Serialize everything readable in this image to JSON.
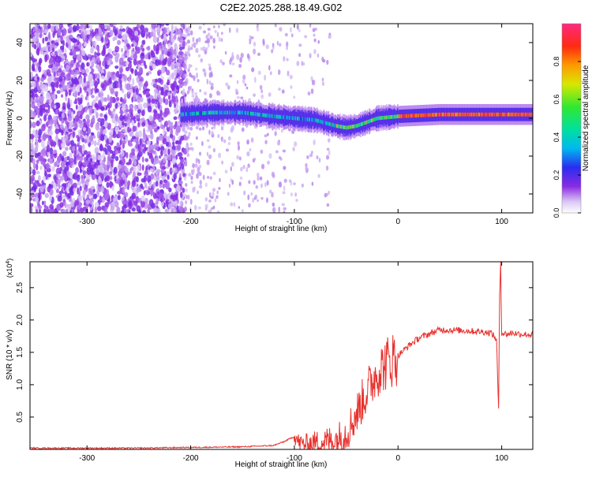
{
  "figure_title": "C2E2.2025.288.18.49.G02",
  "chart_data": [
    {
      "type": "heatmap",
      "title": "C2E2.2025.288.18.49.G02",
      "xlabel": "Height of straight line (km)",
      "ylabel": "Frequency (Hz)",
      "xlim": [
        -355,
        130
      ],
      "ylim": [
        -50,
        50
      ],
      "x_ticks": [
        -300,
        -200,
        -100,
        0,
        100
      ],
      "y_ticks": [
        -40,
        -20,
        0,
        20,
        40
      ],
      "colorbar": {
        "label": "Normalized spectral amplitude",
        "range": [
          0.0,
          1.0
        ],
        "ticks": [
          0.0,
          0.2,
          0.4,
          0.6,
          0.8
        ],
        "tick_labels": [
          "0.0",
          "0.2",
          "0.4",
          "0.6",
          "0.8"
        ]
      },
      "signal_trace": [
        {
          "x": -210,
          "y": 2
        },
        {
          "x": -180,
          "y": 3
        },
        {
          "x": -150,
          "y": 3
        },
        {
          "x": -120,
          "y": 1
        },
        {
          "x": -100,
          "y": 0
        },
        {
          "x": -80,
          "y": -1
        },
        {
          "x": -60,
          "y": -4
        },
        {
          "x": -50,
          "y": -5
        },
        {
          "x": -40,
          "y": -4
        },
        {
          "x": -30,
          "y": -2
        },
        {
          "x": -20,
          "y": 0
        },
        {
          "x": 0,
          "y": 1
        },
        {
          "x": 40,
          "y": 2
        },
        {
          "x": 80,
          "y": 2
        },
        {
          "x": 100,
          "y": 2
        },
        {
          "x": 130,
          "y": 2
        }
      ]
    },
    {
      "type": "line",
      "xlabel": "Height of straight line (km)",
      "ylabel": "SNR (10 * v/v)",
      "y_multiplier": "(x10",
      "y_multiplier_exp": "4",
      "y_multiplier_close": ")",
      "xlim": [
        -355,
        130
      ],
      "ylim": [
        0,
        2.9
      ],
      "x_ticks": [
        -300,
        -200,
        -100,
        0,
        100
      ],
      "y_ticks": [
        0.5,
        1.0,
        1.5,
        2.0,
        2.5
      ],
      "y_tick_labels": [
        "0.5",
        "1.0",
        "1.5",
        "2.0",
        "2.5"
      ],
      "series": [
        {
          "name": "SNR",
          "color": "#e8322e",
          "x": [
            -355,
            -300,
            -250,
            -200,
            -150,
            -120,
            -110,
            -100,
            -95,
            -90,
            -80,
            -70,
            -60,
            -50,
            -40,
            -30,
            -20,
            -10,
            0,
            10,
            20,
            40,
            60,
            80,
            90,
            95,
            97,
            98,
            99,
            100,
            105,
            110,
            120,
            130
          ],
          "y": [
            0.02,
            0.02,
            0.02,
            0.03,
            0.04,
            0.06,
            0.12,
            0.2,
            0.1,
            0.08,
            0.1,
            0.12,
            0.15,
            0.25,
            0.55,
            0.9,
            1.2,
            1.35,
            1.45,
            1.6,
            1.72,
            1.85,
            1.84,
            1.82,
            1.8,
            1.7,
            0.6,
            2.4,
            2.9,
            1.8,
            1.78,
            1.8,
            1.78,
            1.77
          ]
        }
      ]
    }
  ]
}
